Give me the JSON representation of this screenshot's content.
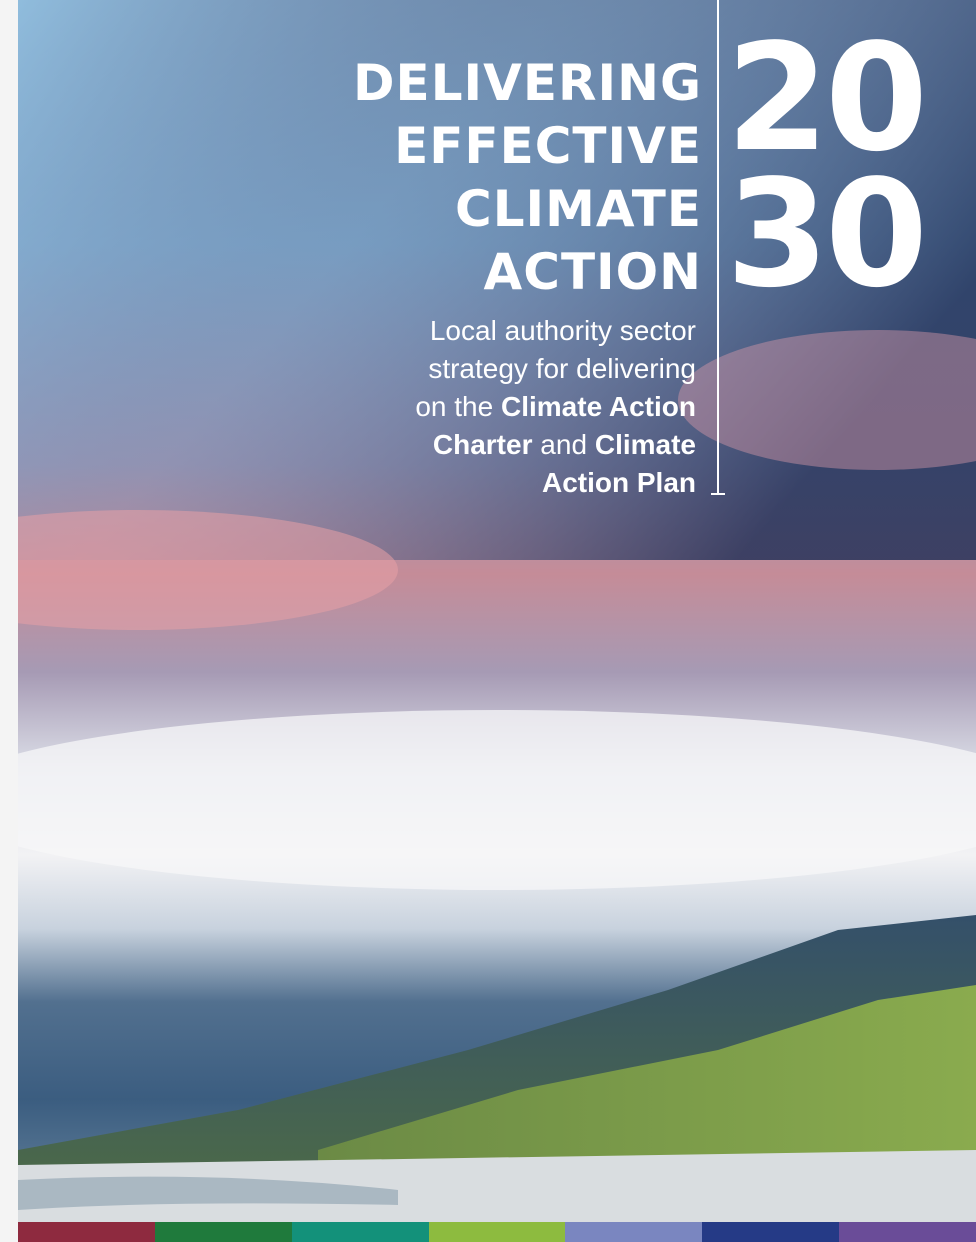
{
  "cover": {
    "title_lines": [
      "DELIVERING",
      "EFFECTIVE",
      "CLIMATE",
      "ACTION"
    ],
    "year_lines": [
      "20",
      "30"
    ],
    "subtitle_lines": [
      [
        {
          "text": "Local authority sector",
          "bold": false
        }
      ],
      [
        {
          "text": "strategy for delivering",
          "bold": false
        }
      ],
      [
        {
          "text": "on the",
          "bold": false
        },
        {
          "text": "Climate Action",
          "bold": true
        }
      ],
      [
        {
          "text": "Charter",
          "bold": true
        },
        {
          "text": "and",
          "bold": false
        },
        {
          "text": "Climate",
          "bold": true
        }
      ],
      [
        {
          "text": "Action Plan",
          "bold": true
        }
      ]
    ]
  }
}
